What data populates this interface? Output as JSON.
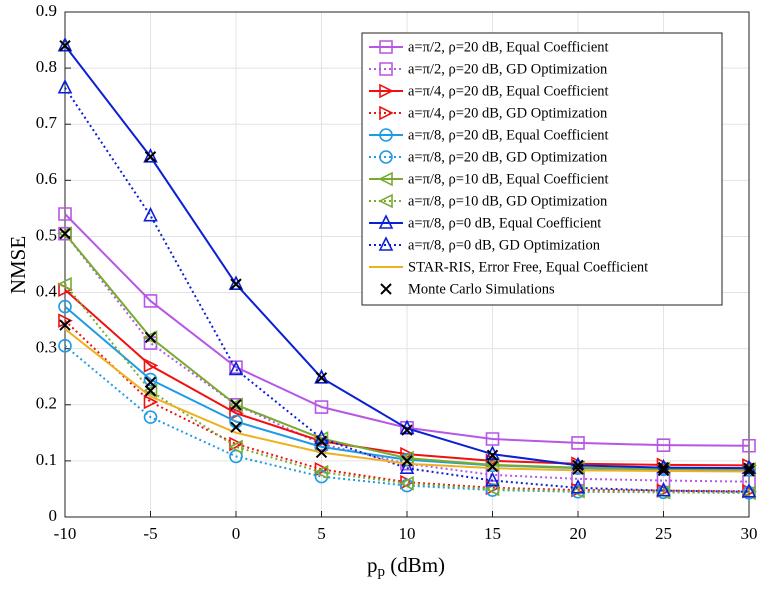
{
  "chart_data": {
    "type": "line",
    "ylabel": "NMSE",
    "xlabel": {
      "base": "p",
      "sub": "p",
      "unit": " (dBm)"
    },
    "x": [
      -10,
      -5,
      0,
      5,
      10,
      15,
      20,
      25,
      30
    ],
    "xlim": [
      -10,
      30
    ],
    "xticks": [
      -10,
      -5,
      0,
      5,
      10,
      15,
      20,
      25,
      30
    ],
    "ylim": [
      0,
      0.9
    ],
    "yticks": [
      0,
      0.1,
      0.2,
      0.3,
      0.4,
      0.5,
      0.6,
      0.7,
      0.8,
      0.9
    ],
    "grid": true,
    "legend": "upper right",
    "series": [
      {
        "name": "a=π/2, ρ=20 dB, Equal Coefficient",
        "color": "#b757e6",
        "marker": "square",
        "dash": "solid",
        "values": [
          0.54,
          0.385,
          0.267,
          0.196,
          0.159,
          0.139,
          0.132,
          0.128,
          0.127
        ]
      },
      {
        "name": "a=π/2, ρ=20 dB, GD Optimization",
        "color": "#b757e6",
        "marker": "square",
        "dash": "dotted",
        "values": [
          0.505,
          0.31,
          0.2,
          0.13,
          0.095,
          0.075,
          0.068,
          0.065,
          0.063
        ]
      },
      {
        "name": "a=π/4, ρ=20 dB, Equal Coefficient",
        "color": "#f01010",
        "marker": "triangle-right",
        "dash": "solid",
        "values": [
          0.405,
          0.27,
          0.185,
          0.135,
          0.112,
          0.1,
          0.095,
          0.093,
          0.092
        ]
      },
      {
        "name": "a=π/4, ρ=20 dB, GD Optimization",
        "color": "#f01010",
        "marker": "triangle-right",
        "dash": "dotted",
        "values": [
          0.35,
          0.205,
          0.13,
          0.085,
          0.062,
          0.052,
          0.048,
          0.047,
          0.046
        ]
      },
      {
        "name": "a=π/8, ρ=20 dB, Equal Coefficient",
        "color": "#1e9be6",
        "marker": "circle",
        "dash": "solid",
        "values": [
          0.375,
          0.245,
          0.17,
          0.125,
          0.102,
          0.092,
          0.087,
          0.085,
          0.084
        ]
      },
      {
        "name": "a=π/8, ρ=20 dB, GD Optimization",
        "color": "#1e9be6",
        "marker": "circle",
        "dash": "dotted",
        "values": [
          0.305,
          0.178,
          0.108,
          0.072,
          0.056,
          0.048,
          0.045,
          0.044,
          0.043
        ]
      },
      {
        "name": "a=π/8, ρ=10 dB, Equal Coefficient",
        "color": "#77ac30",
        "marker": "triangle-left",
        "dash": "solid",
        "values": [
          0.505,
          0.32,
          0.2,
          0.14,
          0.105,
          0.093,
          0.088,
          0.086,
          0.085
        ]
      },
      {
        "name": "a=π/8, ρ=10 dB, GD Optimization",
        "color": "#77ac30",
        "marker": "triangle-left",
        "dash": "dotted",
        "values": [
          0.415,
          0.225,
          0.125,
          0.08,
          0.06,
          0.05,
          0.046,
          0.044,
          0.043
        ]
      },
      {
        "name": "a=π/8, ρ=0 dB, Equal Coefficient",
        "color": "#0b1fd6",
        "marker": "triangle-up",
        "dash": "solid",
        "values": [
          0.84,
          0.642,
          0.415,
          0.248,
          0.158,
          0.112,
          0.092,
          0.088,
          0.087
        ]
      },
      {
        "name": "a=π/8, ρ=0 dB, GD Optimization",
        "color": "#0b1fd6",
        "marker": "triangle-up",
        "dash": "dotted",
        "values": [
          0.765,
          0.537,
          0.263,
          0.14,
          0.087,
          0.065,
          0.052,
          0.047,
          0.045
        ]
      },
      {
        "name": "STAR-RIS, Error Free, Equal Coefficient",
        "color": "#edb120",
        "marker": "none",
        "dash": "solid",
        "values": [
          0.335,
          0.215,
          0.15,
          0.115,
          0.095,
          0.087,
          0.083,
          0.082,
          0.081
        ]
      }
    ],
    "scatter": {
      "name": "Monte Carlo Simulations",
      "color": "#000000",
      "marker": "x",
      "x": [
        -10,
        -10,
        -10,
        -5,
        -5,
        -5,
        -5,
        0,
        0,
        0,
        5,
        5,
        5,
        10,
        10,
        15,
        15,
        20,
        20,
        25,
        25,
        30,
        30
      ],
      "values": [
        0.84,
        0.505,
        0.342,
        0.642,
        0.32,
        0.24,
        0.225,
        0.415,
        0.2,
        0.16,
        0.248,
        0.135,
        0.115,
        0.155,
        0.1,
        0.11,
        0.09,
        0.092,
        0.085,
        0.088,
        0.083,
        0.087,
        0.082
      ]
    }
  }
}
